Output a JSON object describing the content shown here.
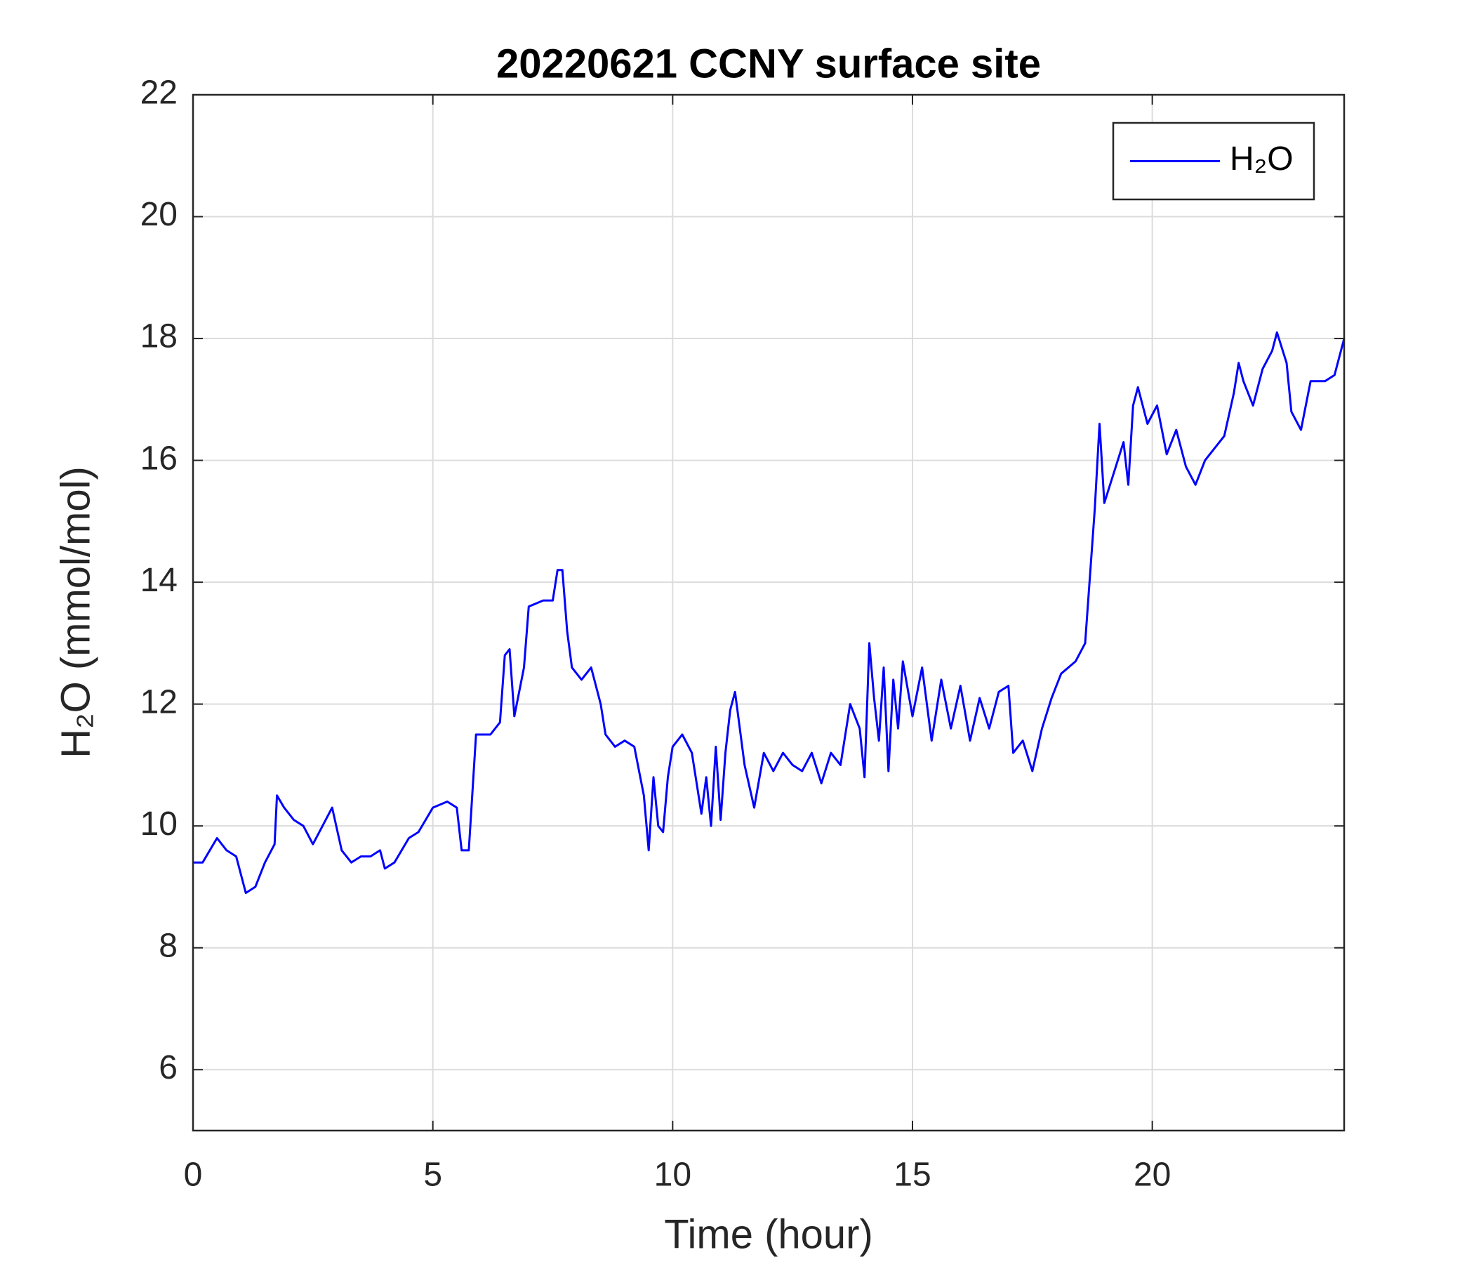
{
  "chart_data": {
    "type": "line",
    "title": "20220621 CCNY surface site",
    "xlabel": "Time (hour)",
    "ylabel": "H₂O (mmol/mol)",
    "xlim": [
      0,
      24
    ],
    "ylim": [
      5,
      22
    ],
    "xticks": [
      0,
      5,
      10,
      15,
      20
    ],
    "yticks": [
      6,
      8,
      10,
      12,
      14,
      16,
      18,
      20,
      22
    ],
    "grid": true,
    "legend": "upper right",
    "x": [
      0,
      0.2,
      0.5,
      0.7,
      0.9,
      1.1,
      1.3,
      1.5,
      1.7,
      1.75,
      1.9,
      2.1,
      2.3,
      2.5,
      2.7,
      2.9,
      3.1,
      3.3,
      3.5,
      3.7,
      3.9,
      4.0,
      4.2,
      4.5,
      4.7,
      5.0,
      5.3,
      5.5,
      5.6,
      5.75,
      5.9,
      6.2,
      6.4,
      6.5,
      6.6,
      6.7,
      6.9,
      7.0,
      7.3,
      7.5,
      7.6,
      7.7,
      7.8,
      7.9,
      8.1,
      8.3,
      8.5,
      8.6,
      8.8,
      9.0,
      9.2,
      9.4,
      9.5,
      9.6,
      9.7,
      9.8,
      9.9,
      10.0,
      10.2,
      10.4,
      10.5,
      10.6,
      10.7,
      10.8,
      10.9,
      11.0,
      11.1,
      11.2,
      11.3,
      11.5,
      11.7,
      11.9,
      12.1,
      12.3,
      12.5,
      12.7,
      12.9,
      13.1,
      13.3,
      13.5,
      13.7,
      13.9,
      14.0,
      14.1,
      14.2,
      14.3,
      14.4,
      14.5,
      14.6,
      14.7,
      14.8,
      15.0,
      15.2,
      15.4,
      15.6,
      15.8,
      16.0,
      16.2,
      16.4,
      16.6,
      16.8,
      17.0,
      17.1,
      17.3,
      17.5,
      17.7,
      17.9,
      18.1,
      18.4,
      18.6,
      18.8,
      18.9,
      19.0,
      19.2,
      19.4,
      19.5,
      19.6,
      19.7,
      19.9,
      20.1,
      20.3,
      20.5,
      20.7,
      20.9,
      21.1,
      21.3,
      21.5,
      21.7,
      21.8,
      21.9,
      22.1,
      22.3,
      22.5,
      22.6,
      22.8,
      22.9,
      23.1,
      23.3,
      23.6,
      23.8,
      24.0
    ],
    "series": [
      {
        "name": "H₂O",
        "color": "#0000ff",
        "values": [
          9.4,
          9.4,
          9.8,
          9.6,
          9.5,
          8.9,
          9.0,
          9.4,
          9.7,
          10.5,
          10.3,
          10.1,
          10.0,
          9.7,
          10.0,
          10.3,
          9.6,
          9.4,
          9.5,
          9.5,
          9.6,
          9.3,
          9.4,
          9.8,
          9.9,
          10.3,
          10.4,
          10.3,
          9.6,
          9.6,
          11.5,
          11.5,
          11.7,
          12.8,
          12.9,
          11.8,
          12.6,
          13.6,
          13.7,
          13.7,
          14.2,
          14.2,
          13.2,
          12.6,
          12.4,
          12.6,
          12.0,
          11.5,
          11.3,
          11.4,
          11.3,
          10.5,
          9.6,
          10.8,
          10.0,
          9.9,
          10.8,
          11.3,
          11.5,
          11.2,
          10.7,
          10.2,
          10.8,
          10.0,
          11.3,
          10.1,
          11.2,
          11.9,
          12.2,
          11.0,
          10.3,
          11.2,
          10.9,
          11.2,
          11.0,
          10.9,
          11.2,
          10.7,
          11.2,
          11.0,
          12.0,
          11.6,
          10.8,
          13.0,
          12.1,
          11.4,
          12.6,
          10.9,
          12.4,
          11.6,
          12.7,
          11.8,
          12.6,
          11.4,
          12.4,
          11.6,
          12.3,
          11.4,
          12.1,
          11.6,
          12.2,
          12.3,
          11.2,
          11.4,
          10.9,
          11.6,
          12.1,
          12.5,
          12.7,
          13.0,
          15.2,
          16.6,
          15.3,
          15.8,
          16.3,
          15.6,
          16.9,
          17.2,
          16.6,
          16.9,
          16.1,
          16.5,
          15.9,
          15.6,
          16.0,
          16.2,
          16.4,
          17.1,
          17.6,
          17.3,
          16.9,
          17.5,
          17.8,
          18.1,
          17.6,
          16.8,
          16.5,
          17.3,
          17.3,
          17.4,
          18.0
        ]
      }
    ]
  }
}
